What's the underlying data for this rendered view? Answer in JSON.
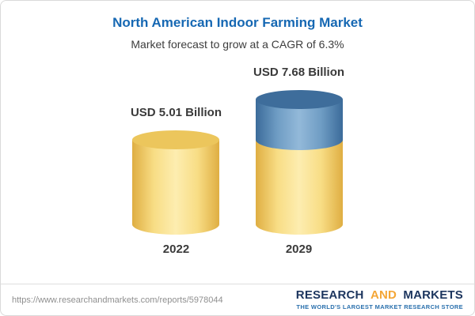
{
  "header": {
    "title": "North American Indoor Farming Market",
    "subtitle": "Market forecast to grow at a CAGR of 6.3%"
  },
  "chart_data": {
    "type": "bar",
    "bar_style": "cylinder",
    "title": "North American Indoor Farming Market",
    "subtitle": "Market forecast to grow at a CAGR of 6.3%",
    "cagr_percent": 6.3,
    "unit": "USD Billion",
    "categories": [
      "2022",
      "2029"
    ],
    "values": [
      5.01,
      7.68
    ],
    "value_labels": [
      "USD 5.01 Billion",
      "USD 7.68 Billion"
    ],
    "series": [
      {
        "name": "base",
        "values": [
          5.01,
          5.01
        ],
        "color": "#F6D878"
      },
      {
        "name": "growth",
        "values": [
          0,
          2.67
        ],
        "color": "#4E7FAC"
      }
    ],
    "axes_visible": false,
    "grid": false,
    "legend": false,
    "ylim": [
      0,
      8
    ]
  },
  "bars": [
    {
      "year": "2022",
      "label": "USD 5.01 Billion",
      "value": 5.01
    },
    {
      "year": "2029",
      "label": "USD 7.68 Billion",
      "value": 7.68,
      "base": 5.01,
      "growth": 2.67
    }
  ],
  "colors": {
    "title_blue": "#1668B3",
    "bar_yellow": "#F6D878",
    "bar_yellow_cap": "#ECC65C",
    "bar_blue": "#4E7FAC",
    "bar_blue_cap": "#3E6D9B",
    "logo_navy": "#1C355E",
    "logo_gold": "#F4A636",
    "tagline_blue": "#2A70AD",
    "border_gray": "#DADADA",
    "footer_text_gray": "#8F8F8F"
  },
  "footer": {
    "url": "https://www.researchandmarkets.com/reports/5978044",
    "logo": {
      "word1": "RESEARCH",
      "word2": "AND",
      "word3": "MARKETS",
      "tagline": "THE WORLD'S LARGEST MARKET RESEARCH STORE"
    }
  }
}
